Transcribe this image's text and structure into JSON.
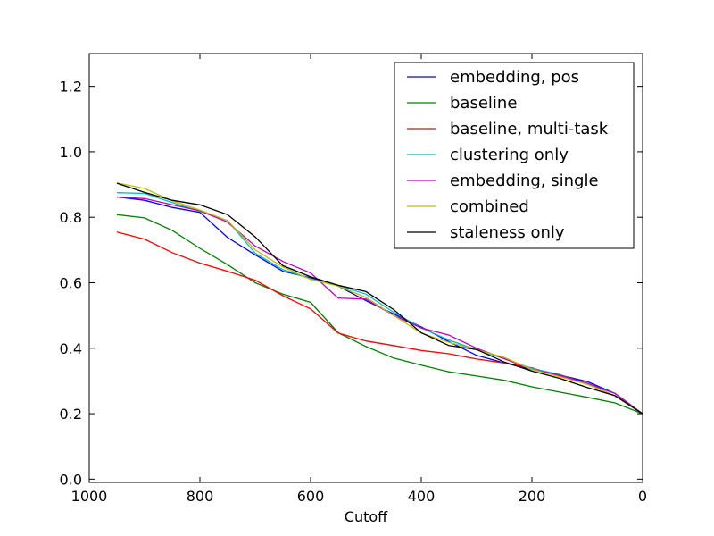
{
  "chart_data": {
    "type": "line",
    "title": "",
    "xlabel": "Cutoff",
    "ylabel": "",
    "xlim": [
      1000,
      0
    ],
    "ylim": [
      -0.01,
      1.3
    ],
    "x_reversed": true,
    "grid": false,
    "legend_position": "top-right",
    "x_ticks": [
      1000,
      800,
      600,
      400,
      200,
      0
    ],
    "x_tick_labels": [
      "1000",
      "800",
      "600",
      "400",
      "200",
      "0"
    ],
    "y_ticks": [
      0.0,
      0.2,
      0.4,
      0.6,
      0.8,
      1.0,
      1.2
    ],
    "y_tick_labels": [
      "0.0",
      "0.2",
      "0.4",
      "0.6",
      "0.8",
      "1.0",
      "1.2"
    ],
    "x": [
      950,
      900,
      850,
      800,
      750,
      700,
      650,
      600,
      550,
      500,
      450,
      400,
      350,
      300,
      250,
      200,
      150,
      100,
      50,
      0
    ],
    "series": [
      {
        "name": "embedding, pos",
        "color": "#0000ff",
        "values": [
          0.862,
          0.852,
          0.83,
          0.815,
          0.738,
          0.685,
          0.635,
          0.615,
          0.59,
          0.545,
          0.505,
          0.465,
          0.42,
          0.378,
          0.355,
          0.335,
          0.318,
          0.298,
          0.262,
          0.2
        ]
      },
      {
        "name": "baseline",
        "color": "#008000",
        "values": [
          0.808,
          0.798,
          0.76,
          0.705,
          0.655,
          0.6,
          0.565,
          0.54,
          0.447,
          0.405,
          0.37,
          0.348,
          0.328,
          0.315,
          0.302,
          0.282,
          0.266,
          0.25,
          0.233,
          0.2
        ]
      },
      {
        "name": "baseline, multi-task",
        "color": "#ff0000",
        "values": [
          0.755,
          0.733,
          0.692,
          0.66,
          0.635,
          0.608,
          0.56,
          0.52,
          0.446,
          0.422,
          0.408,
          0.393,
          0.383,
          0.367,
          0.355,
          0.34,
          0.315,
          0.29,
          0.255,
          0.2
        ]
      },
      {
        "name": "clustering only",
        "color": "#00bfbf",
        "values": [
          0.875,
          0.873,
          0.845,
          0.818,
          0.79,
          0.69,
          0.64,
          0.612,
          0.592,
          0.565,
          0.51,
          0.462,
          0.425,
          0.395,
          0.368,
          0.338,
          0.32,
          0.29,
          0.262,
          0.2
        ]
      },
      {
        "name": "embedding, single",
        "color": "#bf00bf",
        "values": [
          0.862,
          0.857,
          0.838,
          0.82,
          0.785,
          0.712,
          0.665,
          0.63,
          0.553,
          0.55,
          0.5,
          0.462,
          0.44,
          0.4,
          0.368,
          0.335,
          0.318,
          0.293,
          0.262,
          0.2
        ]
      },
      {
        "name": "combined",
        "color": "#bfbf00",
        "values": [
          0.905,
          0.888,
          0.85,
          0.822,
          0.79,
          0.7,
          0.648,
          0.61,
          0.59,
          0.555,
          0.5,
          0.446,
          0.418,
          0.395,
          0.372,
          0.335,
          0.313,
          0.29,
          0.255,
          0.2
        ]
      },
      {
        "name": "staleness only",
        "color": "#000000",
        "values": [
          0.904,
          0.876,
          0.852,
          0.838,
          0.808,
          0.74,
          0.652,
          0.618,
          0.592,
          0.573,
          0.518,
          0.447,
          0.408,
          0.396,
          0.358,
          0.33,
          0.308,
          0.28,
          0.255,
          0.2
        ]
      }
    ]
  }
}
